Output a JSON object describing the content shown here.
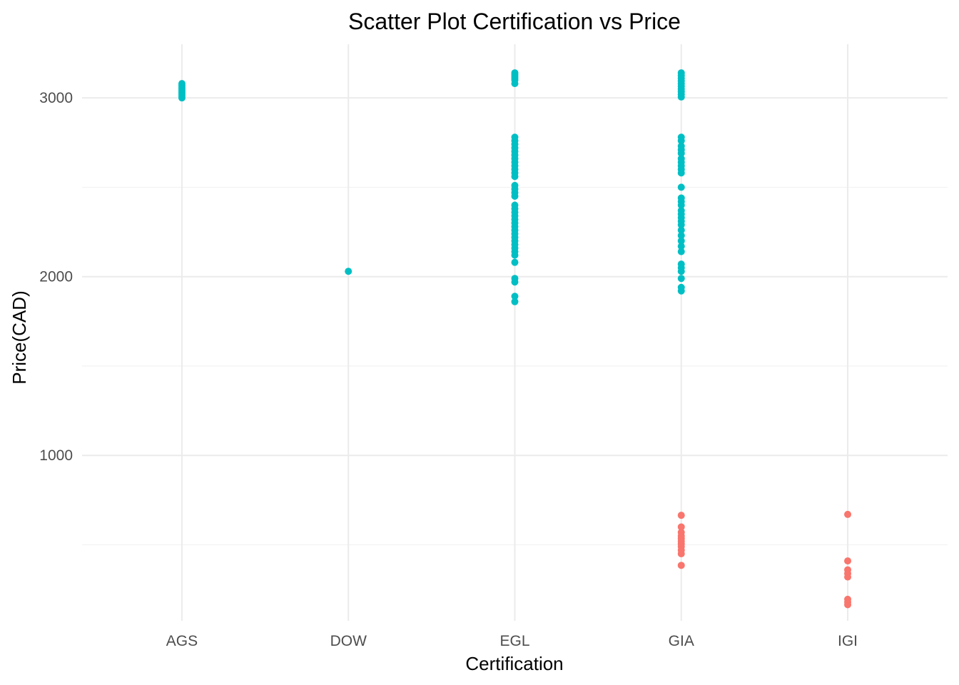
{
  "chart_data": {
    "type": "scatter",
    "title": "Scatter Plot Certification vs Price",
    "xlabel": "Certification",
    "ylabel": "Price(CAD)",
    "categories": [
      "AGS",
      "DOW",
      "EGL",
      "GIA",
      "IGI"
    ],
    "ylim": [
      75,
      3300
    ],
    "yticks": [
      1000,
      2000,
      3000
    ],
    "grid": true,
    "legend": "none",
    "series": [
      {
        "color": "#00BFC4",
        "points": [
          {
            "x": "AGS",
            "y": 3000
          },
          {
            "x": "AGS",
            "y": 3010
          },
          {
            "x": "AGS",
            "y": 3020
          },
          {
            "x": "AGS",
            "y": 3030
          },
          {
            "x": "AGS",
            "y": 3040
          },
          {
            "x": "AGS",
            "y": 3050
          },
          {
            "x": "AGS",
            "y": 3060
          },
          {
            "x": "AGS",
            "y": 3070
          },
          {
            "x": "AGS",
            "y": 3080
          },
          {
            "x": "DOW",
            "y": 2030
          },
          {
            "x": "EGL",
            "y": 3140
          },
          {
            "x": "EGL",
            "y": 3130
          },
          {
            "x": "EGL",
            "y": 3120
          },
          {
            "x": "EGL",
            "y": 3110
          },
          {
            "x": "EGL",
            "y": 3100
          },
          {
            "x": "EGL",
            "y": 3080
          },
          {
            "x": "EGL",
            "y": 2780
          },
          {
            "x": "EGL",
            "y": 2760
          },
          {
            "x": "EGL",
            "y": 2740
          },
          {
            "x": "EGL",
            "y": 2720
          },
          {
            "x": "EGL",
            "y": 2700
          },
          {
            "x": "EGL",
            "y": 2680
          },
          {
            "x": "EGL",
            "y": 2660
          },
          {
            "x": "EGL",
            "y": 2640
          },
          {
            "x": "EGL",
            "y": 2620
          },
          {
            "x": "EGL",
            "y": 2600
          },
          {
            "x": "EGL",
            "y": 2580
          },
          {
            "x": "EGL",
            "y": 2560
          },
          {
            "x": "EGL",
            "y": 2510
          },
          {
            "x": "EGL",
            "y": 2490
          },
          {
            "x": "EGL",
            "y": 2470
          },
          {
            "x": "EGL",
            "y": 2450
          },
          {
            "x": "EGL",
            "y": 2400
          },
          {
            "x": "EGL",
            "y": 2380
          },
          {
            "x": "EGL",
            "y": 2360
          },
          {
            "x": "EGL",
            "y": 2340
          },
          {
            "x": "EGL",
            "y": 2320
          },
          {
            "x": "EGL",
            "y": 2300
          },
          {
            "x": "EGL",
            "y": 2280
          },
          {
            "x": "EGL",
            "y": 2260
          },
          {
            "x": "EGL",
            "y": 2240
          },
          {
            "x": "EGL",
            "y": 2220
          },
          {
            "x": "EGL",
            "y": 2200
          },
          {
            "x": "EGL",
            "y": 2180
          },
          {
            "x": "EGL",
            "y": 2160
          },
          {
            "x": "EGL",
            "y": 2140
          },
          {
            "x": "EGL",
            "y": 2120
          },
          {
            "x": "EGL",
            "y": 2080
          },
          {
            "x": "EGL",
            "y": 1990
          },
          {
            "x": "EGL",
            "y": 1970
          },
          {
            "x": "EGL",
            "y": 1890
          },
          {
            "x": "EGL",
            "y": 1860
          },
          {
            "x": "GIA",
            "y": 3140
          },
          {
            "x": "GIA",
            "y": 3125
          },
          {
            "x": "GIA",
            "y": 3110
          },
          {
            "x": "GIA",
            "y": 3095
          },
          {
            "x": "GIA",
            "y": 3080
          },
          {
            "x": "GIA",
            "y": 3065
          },
          {
            "x": "GIA",
            "y": 3050
          },
          {
            "x": "GIA",
            "y": 3035
          },
          {
            "x": "GIA",
            "y": 3020
          },
          {
            "x": "GIA",
            "y": 3005
          },
          {
            "x": "GIA",
            "y": 2780
          },
          {
            "x": "GIA",
            "y": 2760
          },
          {
            "x": "GIA",
            "y": 2730
          },
          {
            "x": "GIA",
            "y": 2710
          },
          {
            "x": "GIA",
            "y": 2690
          },
          {
            "x": "GIA",
            "y": 2660
          },
          {
            "x": "GIA",
            "y": 2640
          },
          {
            "x": "GIA",
            "y": 2620
          },
          {
            "x": "GIA",
            "y": 2600
          },
          {
            "x": "GIA",
            "y": 2580
          },
          {
            "x": "GIA",
            "y": 2500
          },
          {
            "x": "GIA",
            "y": 2440
          },
          {
            "x": "GIA",
            "y": 2420
          },
          {
            "x": "GIA",
            "y": 2400
          },
          {
            "x": "GIA",
            "y": 2370
          },
          {
            "x": "GIA",
            "y": 2350
          },
          {
            "x": "GIA",
            "y": 2330
          },
          {
            "x": "GIA",
            "y": 2310
          },
          {
            "x": "GIA",
            "y": 2290
          },
          {
            "x": "GIA",
            "y": 2260
          },
          {
            "x": "GIA",
            "y": 2230
          },
          {
            "x": "GIA",
            "y": 2200
          },
          {
            "x": "GIA",
            "y": 2170
          },
          {
            "x": "GIA",
            "y": 2140
          },
          {
            "x": "GIA",
            "y": 2070
          },
          {
            "x": "GIA",
            "y": 2050
          },
          {
            "x": "GIA",
            "y": 2030
          },
          {
            "x": "GIA",
            "y": 1990
          },
          {
            "x": "GIA",
            "y": 1940
          },
          {
            "x": "GIA",
            "y": 1920
          }
        ]
      },
      {
        "color": "#F8766D",
        "points": [
          {
            "x": "GIA",
            "y": 665
          },
          {
            "x": "GIA",
            "y": 600
          },
          {
            "x": "GIA",
            "y": 570
          },
          {
            "x": "GIA",
            "y": 550
          },
          {
            "x": "GIA",
            "y": 535
          },
          {
            "x": "GIA",
            "y": 520
          },
          {
            "x": "GIA",
            "y": 505
          },
          {
            "x": "GIA",
            "y": 490
          },
          {
            "x": "GIA",
            "y": 470
          },
          {
            "x": "GIA",
            "y": 450
          },
          {
            "x": "GIA",
            "y": 385
          },
          {
            "x": "IGI",
            "y": 670
          },
          {
            "x": "IGI",
            "y": 410
          },
          {
            "x": "IGI",
            "y": 360
          },
          {
            "x": "IGI",
            "y": 340
          },
          {
            "x": "IGI",
            "y": 320
          },
          {
            "x": "IGI",
            "y": 195
          },
          {
            "x": "IGI",
            "y": 180
          },
          {
            "x": "IGI",
            "y": 165
          }
        ]
      }
    ]
  }
}
